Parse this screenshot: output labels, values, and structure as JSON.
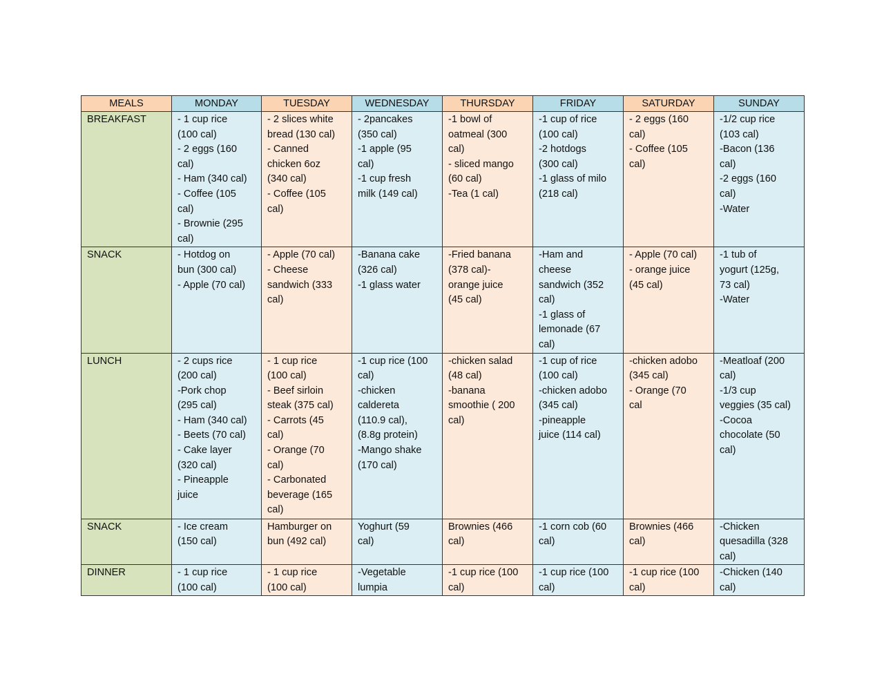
{
  "header": [
    "MEALS",
    "MONDAY",
    "TUESDAY",
    "WEDNESDAY",
    "THURSDAY",
    "FRIDAY",
    "SATURDAY",
    "SUNDAY"
  ],
  "colors": {
    "header_orange": "#FBD4B4",
    "header_blue": "#B6DDE8",
    "meal_green": "#D6E3BC",
    "cell_blue": "#DAEEF3",
    "cell_peach": "#FDE9D9"
  },
  "rows": [
    {
      "meal": "BREAKFAST",
      "cells": [
        [
          "- 1 cup rice",
          "(100 cal)",
          "- 2 eggs (160",
          "cal)",
          "- Ham (340 cal)",
          "- Coffee (105",
          "cal)",
          "- Brownie (295",
          "cal)"
        ],
        [
          "- 2 slices white",
          "bread (130 cal)",
          "- Canned",
          "chicken 6oz",
          "(340 cal)",
          "- Coffee (105",
          "cal)"
        ],
        [
          "- 2pancakes",
          "(350 cal)",
          "-1 apple (95",
          "cal)",
          "-1 cup fresh",
          "milk (149 cal)"
        ],
        [
          "-1 bowl of",
          "oatmeal (300",
          "cal)",
          "- sliced mango",
          "(60 cal)",
          "-Tea (1 cal)"
        ],
        [
          "-1 cup of rice",
          "(100 cal)",
          "-2 hotdogs",
          "(300 cal)",
          "-1 glass of milo",
          "(218 cal)"
        ],
        [
          "- 2 eggs (160",
          "cal)",
          "- Coffee (105",
          "cal)"
        ],
        [
          "-1/2 cup rice",
          "(103 cal)",
          "-Bacon (136",
          "cal)",
          "-2 eggs (160",
          "cal)",
          "-Water"
        ]
      ]
    },
    {
      "meal": "SNACK",
      "cells": [
        [
          "- Hotdog on",
          "bun (300 cal)",
          "- Apple (70 cal)"
        ],
        [
          "- Apple (70 cal)",
          "- Cheese",
          "sandwich (333",
          "cal)"
        ],
        [
          "-Banana cake",
          "(326 cal)",
          "-1 glass water"
        ],
        [
          "-Fried banana",
          "(378 cal)-",
          "orange juice",
          "(45 cal)"
        ],
        [
          "-Ham and",
          "cheese",
          "sandwich (352",
          "cal)",
          "-1 glass of",
          "lemonade (67",
          "cal)"
        ],
        [
          "- Apple (70 cal)",
          "- orange juice",
          "(45 cal)"
        ],
        [
          "-1 tub of",
          "yogurt (125g,",
          "73 cal)",
          "-Water"
        ]
      ]
    },
    {
      "meal": "LUNCH",
      "cells": [
        [
          "- 2 cups rice",
          "(200 cal)",
          "-Pork chop",
          "(295 cal)",
          "- Ham (340 cal)",
          "- Beets (70 cal)",
          "- Cake layer",
          "(320 cal)",
          "- Pineapple",
          "juice"
        ],
        [
          "- 1 cup rice",
          "(100 cal)",
          "- Beef sirloin",
          "steak (375 cal)",
          "- Carrots (45",
          "cal)",
          "- Orange (70",
          "cal)",
          "- Carbonated",
          "beverage (165",
          "cal)"
        ],
        [
          "-1 cup rice (100",
          "cal)",
          "-chicken",
          "caldereta",
          "(110.9 cal),",
          "(8.8g protein)",
          "-Mango shake",
          "(170 cal)"
        ],
        [
          "-chicken salad",
          "(48 cal)",
          "-banana",
          "smoothie ( 200",
          "cal)"
        ],
        [
          "-1 cup of rice",
          "(100 cal)",
          "-chicken adobo",
          "(345 cal)",
          "-pineapple",
          "juice (114 cal)"
        ],
        [
          "-chicken adobo",
          "(345 cal)",
          "- Orange (70",
          "cal"
        ],
        [
          "-Meatloaf (200",
          "cal)",
          "-1/3 cup",
          "veggies (35 cal)",
          "-Cocoa",
          "chocolate (50",
          "cal)"
        ]
      ]
    },
    {
      "meal": "SNACK",
      "cells": [
        [
          "- Ice cream",
          "(150 cal)"
        ],
        [
          "Hamburger on",
          "bun (492 cal)"
        ],
        [
          "Yoghurt (59",
          "cal)"
        ],
        [
          "Brownies (466",
          "cal)"
        ],
        [
          "-1 corn cob (60",
          "cal)"
        ],
        [
          "Brownies (466",
          "cal)"
        ],
        [
          "-Chicken",
          "quesadilla (328",
          "cal)"
        ]
      ]
    },
    {
      "meal": "DINNER",
      "cells": [
        [
          "- 1 cup rice",
          "(100 cal)"
        ],
        [
          "- 1 cup rice",
          "(100 cal)"
        ],
        [
          "-Vegetable",
          "lumpia"
        ],
        [
          "-1 cup rice (100",
          "cal)"
        ],
        [
          "-1 cup rice (100",
          "cal)"
        ],
        [
          "-1 cup rice (100",
          "cal)"
        ],
        [
          "-Chicken (140",
          "cal)"
        ]
      ]
    }
  ]
}
